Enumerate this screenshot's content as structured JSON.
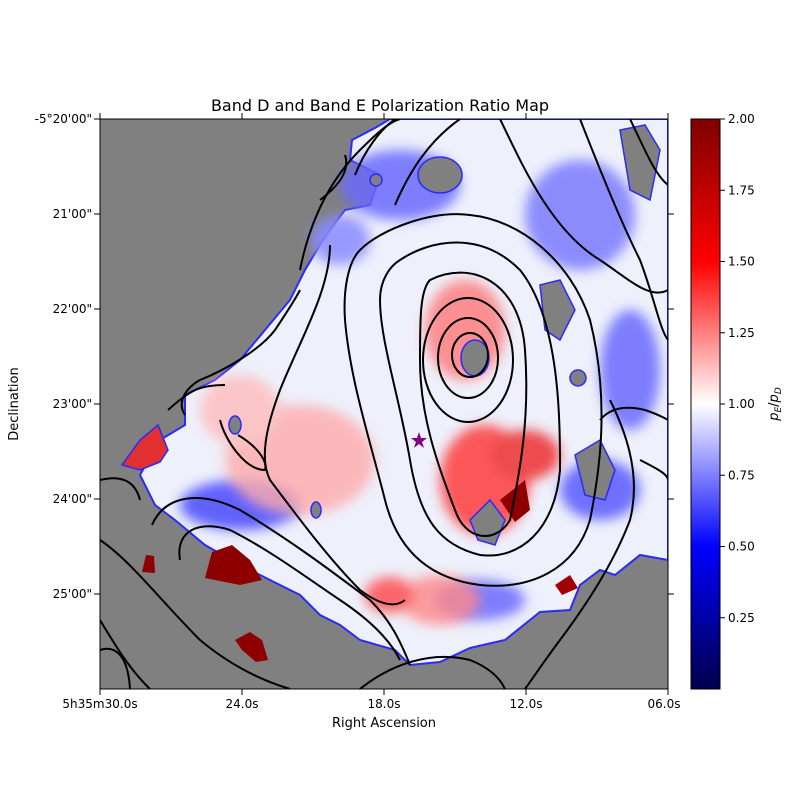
{
  "chart_data": {
    "type": "heatmap",
    "title": "Band D and Band E Polarization Ratio Map",
    "xlabel": "Right Ascension",
    "ylabel": "Declination",
    "x_ticks": [
      "5h35m30.0s",
      "24.0s",
      "18.0s",
      "12.0s",
      "06.0s"
    ],
    "x_tick_values_s": [
      30,
      24,
      18,
      12,
      6
    ],
    "xlim_s": [
      30,
      6
    ],
    "y_ticks": [
      "-5°20'00\"",
      "21'00\"",
      "22'00\"",
      "23'00\"",
      "24'00\"",
      "25'00\""
    ],
    "y_tick_values_arcmin": [
      -20,
      -21,
      -22,
      -23,
      -24,
      -25
    ],
    "ylim_arcmin": [
      -26,
      -20
    ],
    "colorbar": {
      "label": "p_E/p_D",
      "min": 0.0,
      "max": 2.0,
      "ticks": [
        "0.25",
        "0.50",
        "0.75",
        "1.00",
        "1.25",
        "1.50",
        "1.75",
        "2.00"
      ],
      "tick_values": [
        0.25,
        0.5,
        0.75,
        1.0,
        1.25,
        1.5,
        1.75,
        2.0
      ],
      "colormap": "seismic",
      "colors": [
        "#00004c",
        "#0000ff",
        "#ffffff",
        "#ff0000",
        "#7f0000"
      ]
    },
    "background_color": "#808080",
    "contour_color": "#000000",
    "marker": {
      "symbol": "star",
      "color": "#800080",
      "ra_s": 16.8,
      "dec_arcmin": -23.38
    },
    "peak_contour_center": {
      "ra_s": 14.0,
      "dec_arcmin": -22.55
    }
  }
}
